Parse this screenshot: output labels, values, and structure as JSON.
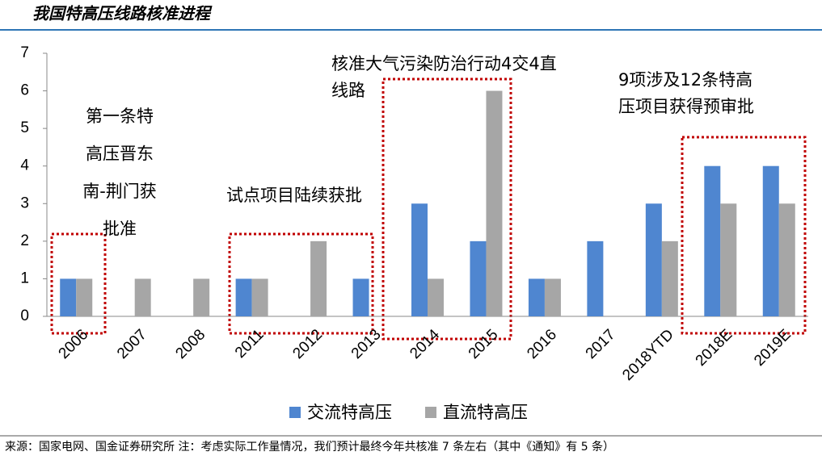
{
  "chart_data": {
    "type": "bar",
    "title": "我国特高压线路核准进程",
    "source": "来源：国家电网、国金证券研究所 注：考虑实际工作量情况，我们预计最终今年共核准 7 条左右（其中《通知》有 5 条）",
    "categories": [
      "2006",
      "2007",
      "2008",
      "2011",
      "2012",
      "2013",
      "2014",
      "2015",
      "2016",
      "2017",
      "2018YTD",
      "2018E",
      "2019E"
    ],
    "series": [
      {
        "name": "交流特高压",
        "color": "#4f86d0",
        "values": [
          1,
          0,
          0,
          1,
          0,
          1,
          3,
          2,
          1,
          2,
          3,
          4,
          4
        ]
      },
      {
        "name": "直流特高压",
        "color": "#a6a6a6",
        "values": [
          1,
          1,
          1,
          1,
          2,
          0,
          1,
          6,
          1,
          0,
          2,
          3,
          3
        ]
      }
    ],
    "ylim": [
      0,
      7
    ],
    "yticks": [
      0,
      1,
      2,
      3,
      4,
      5,
      6,
      7
    ],
    "grid": false,
    "legend": "bottom",
    "annotations": [
      {
        "lines": [
          "第一条特",
          "高压晋东",
          "南-荆门获",
          "批准"
        ]
      },
      {
        "lines": [
          "试点项目陆续获批"
        ]
      },
      {
        "lines": [
          "核准大气污染防治行动4交4直",
          "线路"
        ]
      },
      {
        "lines": [
          "9项涉及12条特高",
          "压项目获得预审批"
        ]
      }
    ]
  }
}
